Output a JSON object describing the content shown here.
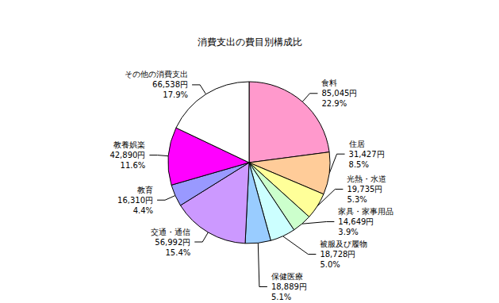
{
  "chart_data": {
    "type": "pie",
    "title": "消費支出の費目別構成比",
    "categories": [
      "食料",
      "住居",
      "光熱・水道",
      "家具・家事用品",
      "被服及び履物",
      "保健医療",
      "交通・通信",
      "教育",
      "教養娯楽",
      "その他の消費支出"
    ],
    "values": [
      85045,
      31427,
      19735,
      14649,
      18728,
      18889,
      56992,
      16310,
      42890,
      66538
    ],
    "value_labels": [
      "85,045円",
      "31,427円",
      "19,735円",
      "14,649円",
      "18,728円",
      "18,889円",
      "56,992円",
      "16,310円",
      "42,890円",
      "66,538円"
    ],
    "percent_labels": [
      "22.9%",
      "8.5%",
      "5.3%",
      "3.9%",
      "5.0%",
      "5.1%",
      "15.4%",
      "4.4%",
      "11.6%",
      "17.9%"
    ],
    "colors": [
      "#ff99cc",
      "#ffcc99",
      "#ffff99",
      "#ccffcc",
      "#ccffff",
      "#99ccff",
      "#cc99ff",
      "#9999ff",
      "#ff00ff",
      "#ffffff"
    ],
    "data_labels": true
  }
}
